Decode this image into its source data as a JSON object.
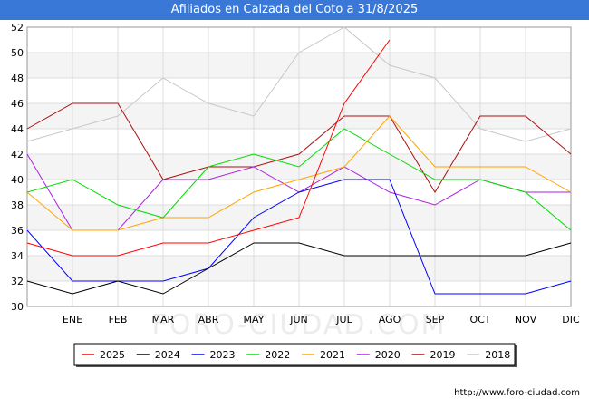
{
  "chart_data": {
    "type": "line",
    "title": "Afiliados en Calzada del Coto a 31/8/2025",
    "categories": [
      "",
      "ENE",
      "FEB",
      "MAR",
      "ABR",
      "MAY",
      "JUN",
      "JUL",
      "AGO",
      "SEP",
      "OCT",
      "NOV",
      "DIC"
    ],
    "ylim": [
      30,
      52
    ],
    "yticks": [
      30,
      32,
      34,
      36,
      38,
      40,
      42,
      44,
      46,
      48,
      50,
      52
    ],
    "grid": true,
    "legend_position": "bottom",
    "watermark": "FORO-CIUDAD.COM",
    "series": [
      {
        "name": "2025",
        "color": "#ff0000",
        "values": [
          35,
          34,
          34,
          35,
          35,
          36,
          37,
          46,
          51,
          null,
          null,
          null,
          null
        ]
      },
      {
        "name": "2024",
        "color": "#000000",
        "values": [
          32,
          31,
          32,
          31,
          33,
          35,
          35,
          34,
          34,
          34,
          34,
          34,
          35
        ]
      },
      {
        "name": "2023",
        "color": "#0000ff",
        "values": [
          36,
          32,
          32,
          32,
          33,
          37,
          39,
          40,
          40,
          31,
          31,
          31,
          32
        ]
      },
      {
        "name": "2022",
        "color": "#00dd00",
        "values": [
          39,
          40,
          38,
          37,
          41,
          42,
          41,
          44,
          42,
          40,
          40,
          39,
          36
        ]
      },
      {
        "name": "2021",
        "color": "#ffa500",
        "values": [
          39,
          36,
          36,
          37,
          37,
          39,
          40,
          41,
          45,
          41,
          41,
          41,
          39
        ]
      },
      {
        "name": "2020",
        "color": "#aa22dd",
        "values": [
          42,
          36,
          36,
          40,
          40,
          41,
          39,
          41,
          39,
          38,
          40,
          39,
          39
        ]
      },
      {
        "name": "2019",
        "color": "#aa1111",
        "values": [
          44,
          46,
          46,
          40,
          41,
          41,
          42,
          45,
          45,
          39,
          45,
          45,
          42
        ]
      },
      {
        "name": "2018",
        "color": "#c8c8c8",
        "values": [
          43,
          44,
          45,
          48,
          46,
          45,
          50,
          52,
          49,
          48,
          44,
          43,
          44
        ]
      }
    ]
  },
  "footer": {
    "url": "http://www.foro-ciudad.com"
  }
}
